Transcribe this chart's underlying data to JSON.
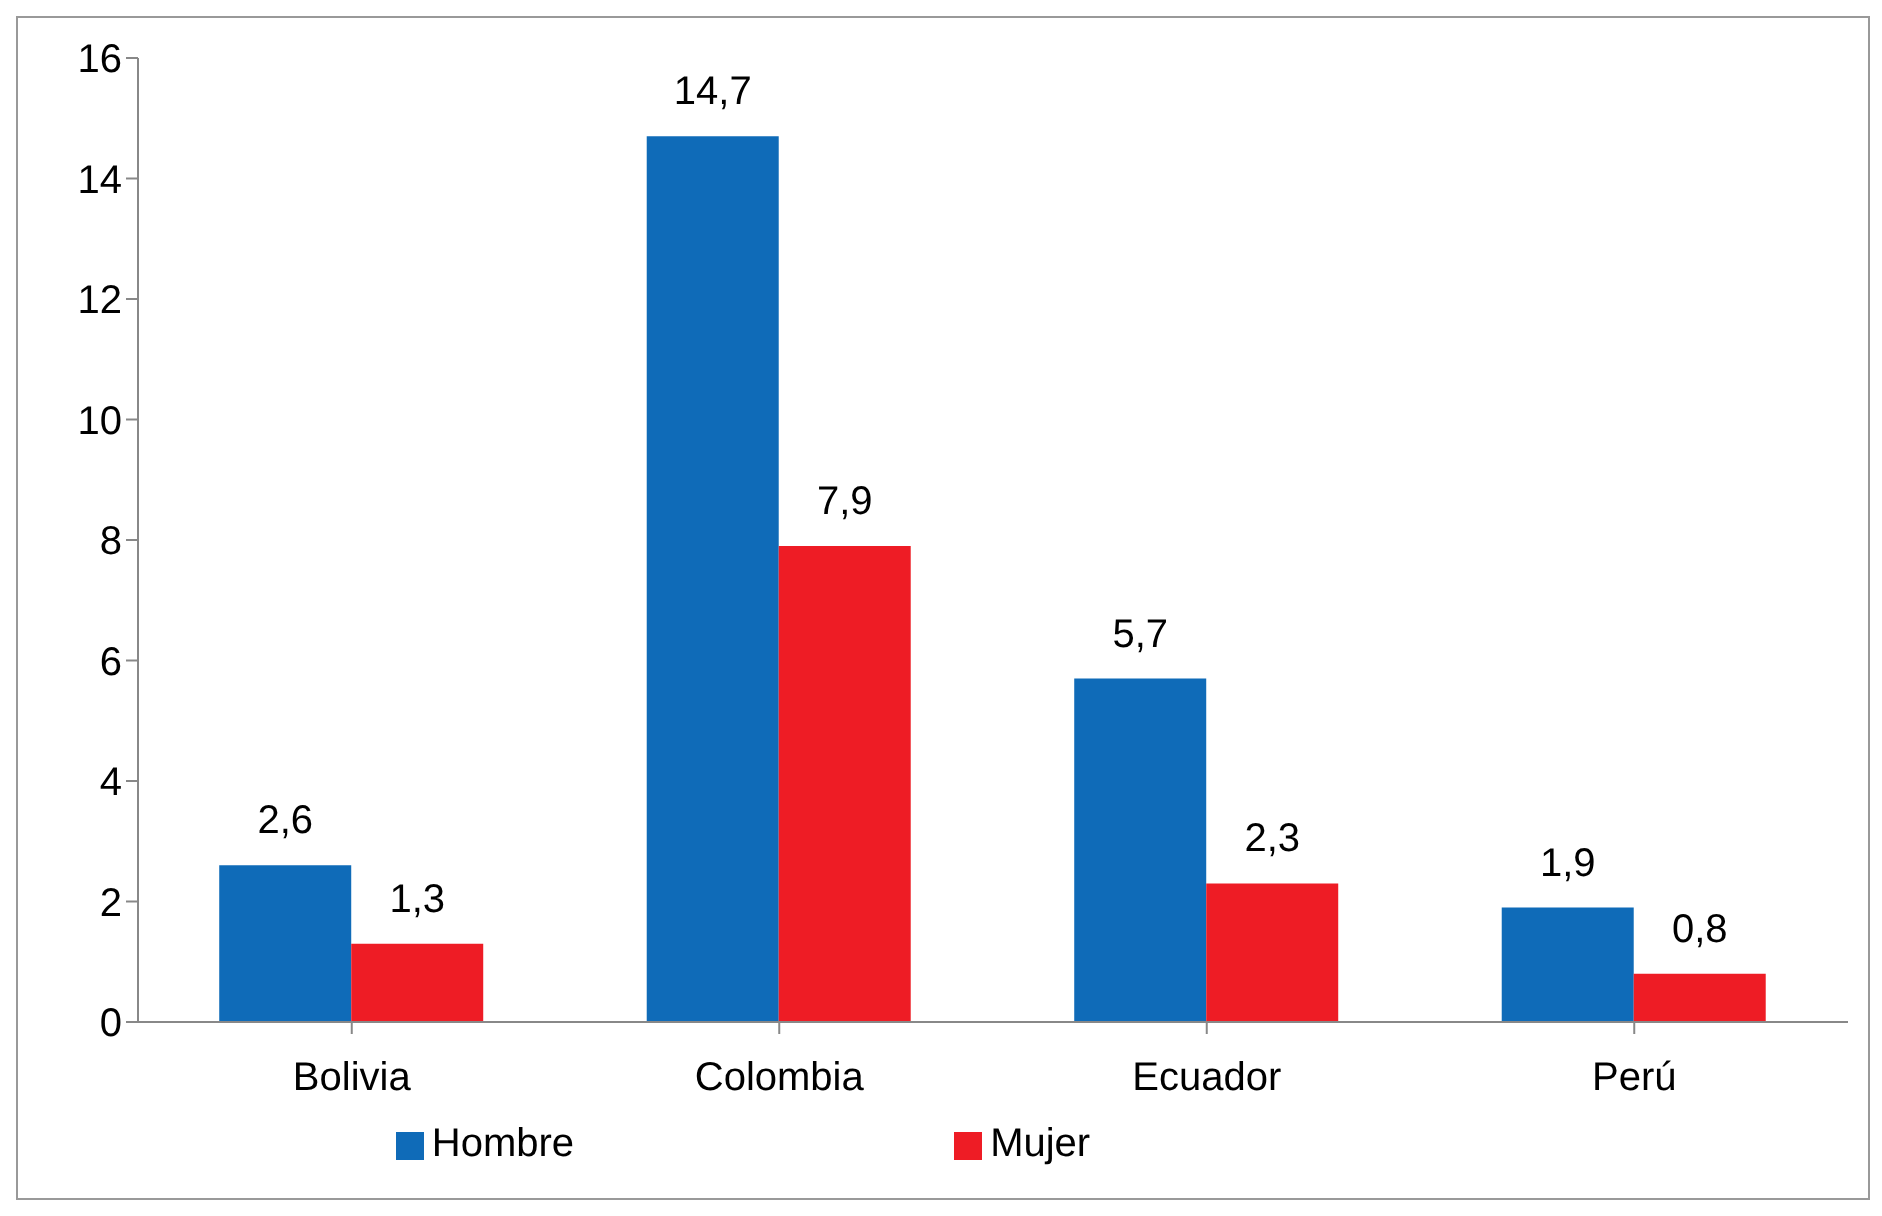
{
  "chart_data": {
    "type": "bar",
    "categories": [
      "Bolivia",
      "Colombia",
      "Ecuador",
      "Perú"
    ],
    "series": [
      {
        "name": "Hombre",
        "color": "#0f6bb8",
        "values": [
          2.6,
          14.7,
          5.7,
          1.9
        ],
        "value_labels": [
          "2,6",
          "14,7",
          "5,7",
          "1,9"
        ]
      },
      {
        "name": "Mujer",
        "color": "#ee1c25",
        "values": [
          1.3,
          7.9,
          2.3,
          0.8
        ],
        "value_labels": [
          "1,3",
          "7,9",
          "2,3",
          "0,8"
        ]
      }
    ],
    "ylim": [
      0,
      16
    ],
    "yticks": [
      0,
      2,
      4,
      6,
      8,
      10,
      12,
      14,
      16
    ],
    "grid": false,
    "legend": "bottom"
  }
}
